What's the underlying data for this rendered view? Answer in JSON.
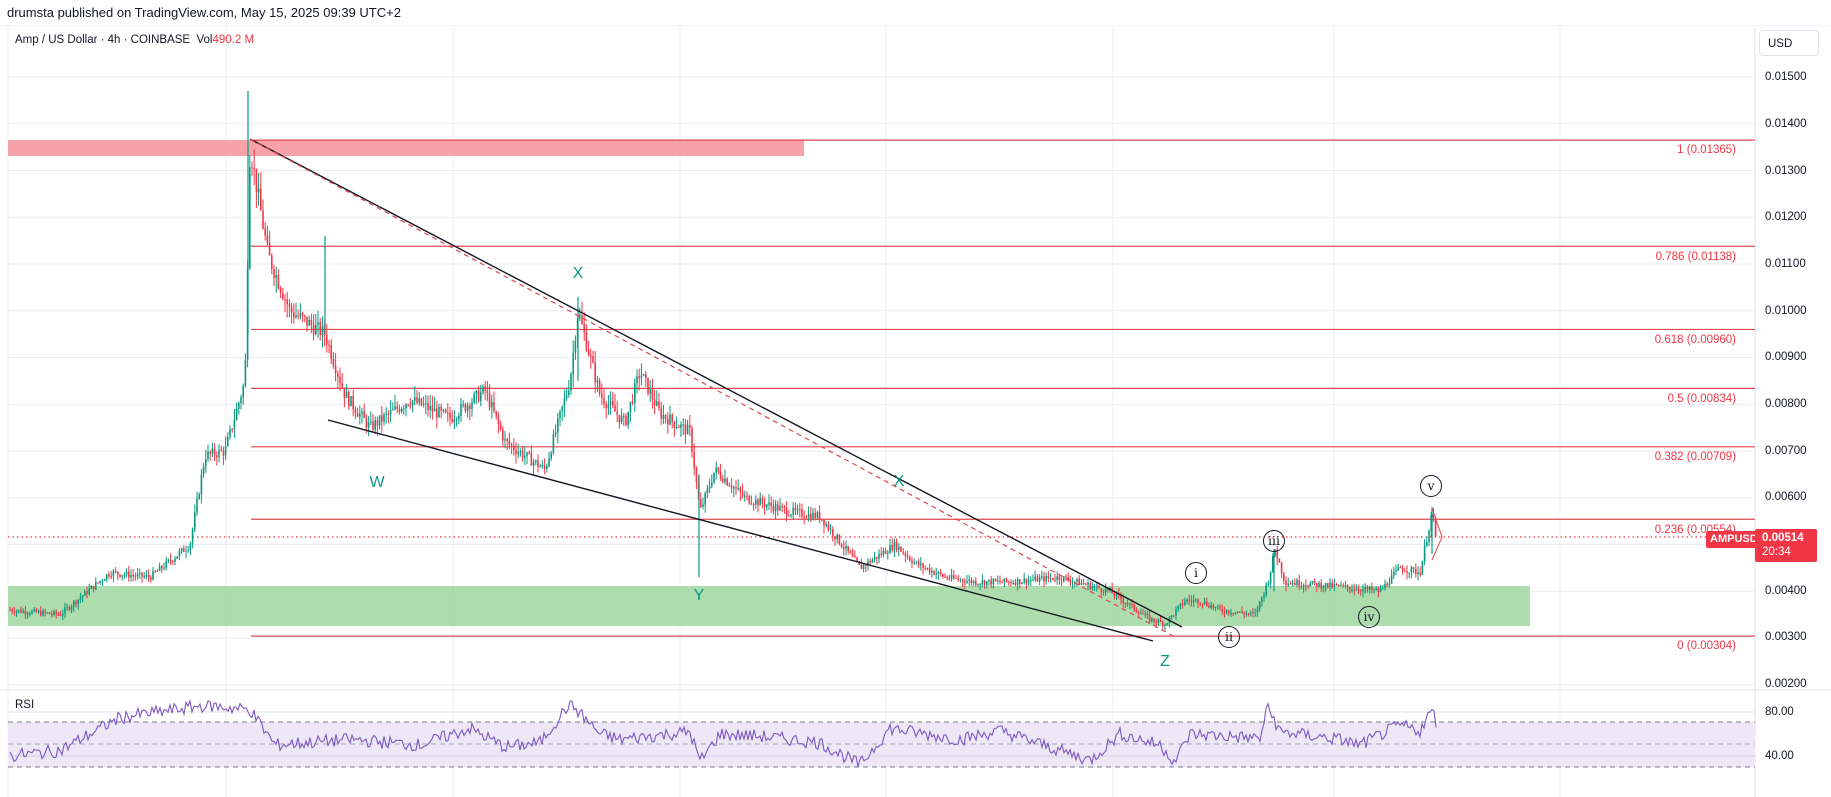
{
  "publish_bar": {
    "text": "drumsta published on TradingView.com, May 15, 2025 09:39 UTC+2"
  },
  "legend": {
    "symbol_desc": "Amp / US Dollar · 4h · COINBASE",
    "vol_label": "Vol",
    "vol_value": "490.2 M"
  },
  "price_axis": {
    "currency_button": "USD",
    "ticks": [
      "0.01500",
      "0.01400",
      "0.01300",
      "0.01200",
      "0.01100",
      "0.01000",
      "0.00900",
      "0.00800",
      "0.00700",
      "0.00600",
      "0.00400",
      "0.00300",
      "0.00200"
    ],
    "last_price": "0.00514",
    "countdown": "20:34",
    "symbol_tag": "AMPUSD"
  },
  "fib_levels": [
    {
      "label": "1 (0.01365)",
      "price": 0.01365
    },
    {
      "label": "0.786 (0.01138)",
      "price": 0.01138
    },
    {
      "label": "0.618 (0.00960)",
      "price": 0.0096
    },
    {
      "label": "0.5 (0.00834)",
      "price": 0.00834
    },
    {
      "label": "0.382 (0.00709)",
      "price": 0.00709
    },
    {
      "label": "0.236 (0.00554)",
      "price": 0.00554
    },
    {
      "label": "0 (0.00304)",
      "price": 0.00304
    }
  ],
  "wave_labels": {
    "corrective": [
      "W",
      "X",
      "Y",
      "X",
      "Z"
    ],
    "impulse": [
      "i",
      "ii",
      "iii",
      "iv",
      "v"
    ]
  },
  "rsi": {
    "label": "RSI",
    "ticks": [
      "80.00",
      "40.00"
    ]
  },
  "colors": {
    "up": "#089981",
    "down": "#f23645",
    "fib_line": "#e0474f",
    "resistance_zone": "#f7a1a8",
    "support_zone": "#a9dba9",
    "rsi_line": "#7e57c2",
    "rsi_band": "#ede7f6"
  },
  "chart_data": {
    "type": "candlestick",
    "title": "Amp / US Dollar · 4h · COINBASE",
    "ylabel": "USD",
    "ylim": [
      0.002,
      0.0155
    ],
    "last_price": 0.00514,
    "key_points": [
      {
        "label": "start",
        "price": 0.0036
      },
      {
        "label": "peak",
        "price": 0.0147
      },
      {
        "label": "W",
        "price": 0.0069
      },
      {
        "label": "X",
        "price": 0.0103
      },
      {
        "label": "Y",
        "price": 0.0043
      },
      {
        "label": "X",
        "price": 0.0056
      },
      {
        "label": "Z",
        "price": 0.003
      },
      {
        "label": "i",
        "price": 0.0039
      },
      {
        "label": "ii",
        "price": 0.0034
      },
      {
        "label": "iii",
        "price": 0.0049
      },
      {
        "label": "iv",
        "price": 0.004
      },
      {
        "label": "v",
        "price": 0.0058
      }
    ],
    "zones": [
      {
        "name": "resistance",
        "from": 0.0133,
        "to": 0.01365
      },
      {
        "name": "support",
        "from": 0.0032,
        "to": 0.0041
      }
    ],
    "rsi_ylim": [
      20,
      90
    ],
    "rsi_band": [
      30,
      70
    ]
  }
}
